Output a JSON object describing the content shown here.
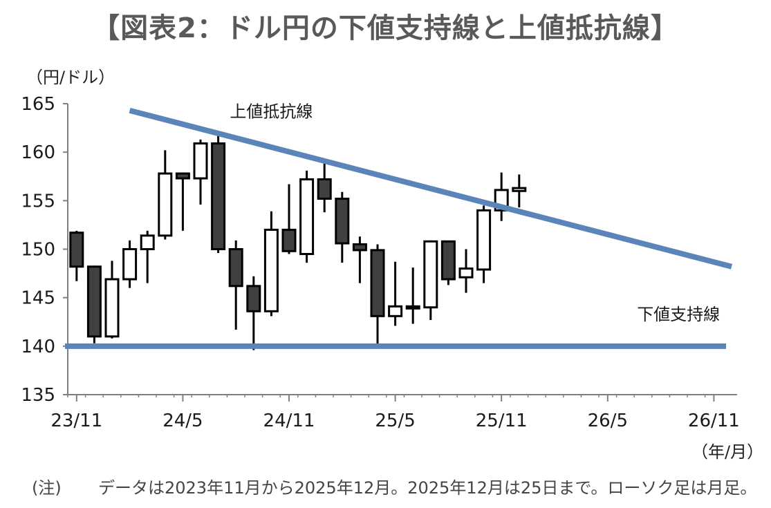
{
  "title": "【図表2：ドル円の下値支持線と上値抵抗線】",
  "y_unit": "（円/ドル）",
  "x_unit": "（年/月）",
  "note_label": "(注)",
  "note_text": "データは2023年11月から2025年12月。2025年12月は25日まで。ローソク足は月足。",
  "colors": {
    "trendline": "#5b84b8",
    "bearish": "#404040",
    "bullish": "#ffffff",
    "axis": "#7f7f7f"
  },
  "chart_data": {
    "type": "candlestick",
    "ylim": [
      135,
      165
    ],
    "yticks": [
      135,
      140,
      145,
      150,
      155,
      160,
      165
    ],
    "xticks": [
      "23/11",
      "24/5",
      "24/11",
      "25/5",
      "25/11",
      "26/5",
      "26/11"
    ],
    "grid": false,
    "candles": [
      {
        "month": "23/11",
        "open": 151.7,
        "high": 151.9,
        "low": 146.7,
        "close": 148.2
      },
      {
        "month": "23/12",
        "open": 148.2,
        "high": 148.3,
        "low": 140.3,
        "close": 141.0
      },
      {
        "month": "24/1",
        "open": 141.0,
        "high": 148.8,
        "low": 140.8,
        "close": 146.9
      },
      {
        "month": "24/2",
        "open": 146.9,
        "high": 150.9,
        "low": 146.0,
        "close": 150.0
      },
      {
        "month": "24/3",
        "open": 150.0,
        "high": 151.9,
        "low": 146.5,
        "close": 151.4
      },
      {
        "month": "24/4",
        "open": 151.4,
        "high": 160.2,
        "low": 151.0,
        "close": 157.8
      },
      {
        "month": "24/5",
        "open": 157.8,
        "high": 157.9,
        "low": 151.9,
        "close": 157.3
      },
      {
        "month": "24/6",
        "open": 157.3,
        "high": 161.3,
        "low": 154.6,
        "close": 160.9
      },
      {
        "month": "24/7",
        "open": 160.9,
        "high": 161.9,
        "low": 149.6,
        "close": 150.0
      },
      {
        "month": "24/8",
        "open": 150.0,
        "high": 150.9,
        "low": 141.7,
        "close": 146.2
      },
      {
        "month": "24/9",
        "open": 146.2,
        "high": 147.2,
        "low": 139.6,
        "close": 143.6
      },
      {
        "month": "24/10",
        "open": 143.6,
        "high": 153.9,
        "low": 143.1,
        "close": 152.0
      },
      {
        "month": "24/11",
        "open": 152.0,
        "high": 156.7,
        "low": 149.5,
        "close": 149.8
      },
      {
        "month": "24/12",
        "open": 149.5,
        "high": 158.1,
        "low": 148.6,
        "close": 157.2
      },
      {
        "month": "25/1",
        "open": 157.2,
        "high": 158.9,
        "low": 153.8,
        "close": 155.2
      },
      {
        "month": "25/2",
        "open": 155.2,
        "high": 155.9,
        "low": 148.6,
        "close": 150.6
      },
      {
        "month": "25/3",
        "open": 150.5,
        "high": 151.3,
        "low": 146.5,
        "close": 149.9
      },
      {
        "month": "25/4",
        "open": 149.9,
        "high": 150.5,
        "low": 139.9,
        "close": 143.1
      },
      {
        "month": "25/5",
        "open": 143.1,
        "high": 148.7,
        "low": 142.1,
        "close": 144.1
      },
      {
        "month": "25/6",
        "open": 144.1,
        "high": 148.1,
        "low": 142.3,
        "close": 144.1
      },
      {
        "month": "25/7",
        "open": 144.0,
        "high": 150.9,
        "low": 142.7,
        "close": 150.8
      },
      {
        "month": "25/8",
        "open": 150.8,
        "high": 150.8,
        "low": 146.3,
        "close": 146.9
      },
      {
        "month": "25/9",
        "open": 147.1,
        "high": 150.0,
        "low": 145.5,
        "close": 148.0
      },
      {
        "month": "25/10",
        "open": 147.9,
        "high": 154.5,
        "low": 146.5,
        "close": 154.0
      },
      {
        "month": "25/11",
        "open": 154.0,
        "high": 157.9,
        "low": 152.9,
        "close": 156.1
      },
      {
        "month": "25/12",
        "open": 156.0,
        "high": 157.7,
        "low": 154.3,
        "close": 156.3
      }
    ],
    "lines": [
      {
        "name": "上値抵抗線",
        "from": {
          "month": "24/2",
          "value": 164.3
        },
        "to": {
          "month": "26/12",
          "value": 148.2
        }
      },
      {
        "name": "下値支持線",
        "from": {
          "month": "23/11",
          "value": 140.0
        },
        "to": {
          "month": "26/12",
          "value": 140.0
        }
      }
    ],
    "annotations": [
      {
        "text": "上値抵抗線",
        "month": "24/10",
        "value": 163.6
      },
      {
        "text": "下値支持線",
        "month": "26/9",
        "value": 142.7
      }
    ]
  }
}
